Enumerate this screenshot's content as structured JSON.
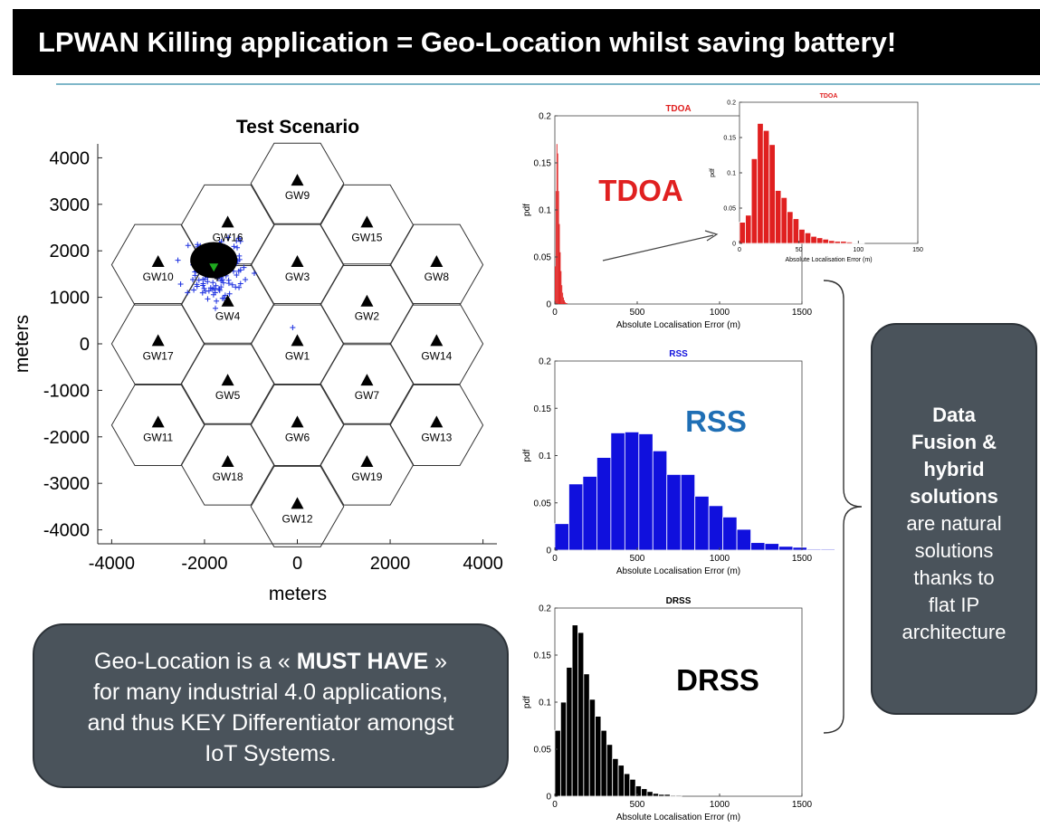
{
  "title": "LPWAN Killing application = Geo-Location whilst saving battery!",
  "callout_left": {
    "pre": "Geo-Location is a « ",
    "bold": "MUST HAVE",
    "post": " »",
    "line2": "for many industrial 4.0 applications,",
    "line3": "and thus KEY Differentiator amongst",
    "line4": "IoT Systems."
  },
  "callout_right": {
    "bold1": "Data",
    "bold2": "Fusion &",
    "bold3": "hybrid",
    "bold4": "solutions",
    "line5": "are natural",
    "line6": "solutions",
    "line7": "thanks to",
    "line8": "flat IP",
    "line9": "architecture"
  },
  "colors": {
    "tdoa": "#e02020",
    "rss": "#1010dd",
    "drss": "#000000",
    "rss_label": "#1f6fb5",
    "callout_bg": "#4a535b",
    "gw_cluster_green": "#1faa1f"
  },
  "chart_data": [
    {
      "type": "scatter",
      "title": "Test Scenario",
      "xlabel": "meters",
      "ylabel": "meters",
      "xlim": [
        -4300,
        4300
      ],
      "ylim": [
        -4300,
        4300
      ],
      "xticks": [
        -4000,
        -2000,
        0,
        2000,
        4000
      ],
      "yticks": [
        4000,
        3000,
        2000,
        1000,
        0,
        -1000,
        -2000,
        -3000,
        -4000
      ],
      "xtick_labels": [
        "-4000",
        "-2000",
        "0",
        "2000",
        "4000"
      ],
      "ytick_labels": [
        "4000",
        "3000",
        "2000",
        "1000",
        "0",
        "-1000",
        "-2000",
        "-3000",
        "-4000"
      ],
      "gateways": [
        {
          "name": "GW9",
          "x": 0,
          "y": 3500
        },
        {
          "name": "GW16",
          "x": -1500,
          "y": 2600
        },
        {
          "name": "GW15",
          "x": 1500,
          "y": 2600
        },
        {
          "name": "GW10",
          "x": -3000,
          "y": 1750
        },
        {
          "name": "GW3",
          "x": 0,
          "y": 1750
        },
        {
          "name": "GW8",
          "x": 3000,
          "y": 1750
        },
        {
          "name": "GW4",
          "x": -1500,
          "y": 900
        },
        {
          "name": "GW2",
          "x": 1500,
          "y": 900
        },
        {
          "name": "GW17",
          "x": -3000,
          "y": 50
        },
        {
          "name": "GW1",
          "x": 0,
          "y": 50
        },
        {
          "name": "GW14",
          "x": 3000,
          "y": 50
        },
        {
          "name": "GW5",
          "x": -1500,
          "y": -800
        },
        {
          "name": "GW7",
          "x": 1500,
          "y": -800
        },
        {
          "name": "GW11",
          "x": -3000,
          "y": -1700
        },
        {
          "name": "GW6",
          "x": 0,
          "y": -1700
        },
        {
          "name": "GW13",
          "x": 3000,
          "y": -1700
        },
        {
          "name": "GW18",
          "x": -1500,
          "y": -2550
        },
        {
          "name": "GW19",
          "x": 1500,
          "y": -2550
        },
        {
          "name": "GW12",
          "x": 0,
          "y": -3450
        }
      ],
      "estimates_center": {
        "x": -1800,
        "y": 1800
      }
    },
    {
      "type": "bar",
      "title": "TDOA",
      "label": "TDOA",
      "xlabel": "Absolute Localisation Error (m)",
      "ylabel": "pdf",
      "xlim": [
        0,
        1500
      ],
      "ylim": [
        0,
        0.2
      ],
      "xtick_labels": [
        "0",
        "500",
        "1000",
        "1500"
      ],
      "ytick_labels": [
        "0",
        "0.05",
        "0.1",
        "0.15",
        "0.2"
      ],
      "bin_width": 5,
      "values": [
        0.04,
        0.12,
        0.17,
        0.16,
        0.12,
        0.085,
        0.055,
        0.035,
        0.02,
        0.012,
        0.007,
        0.004,
        0.002,
        0.001,
        0.001
      ]
    },
    {
      "type": "bar",
      "title": "TDOA",
      "xlabel": "Absolute Localisation Error (m)",
      "ylabel": "pdf",
      "xlim": [
        0,
        150
      ],
      "ylim": [
        0,
        0.2
      ],
      "xtick_labels": [
        "0",
        "50",
        "100",
        "150"
      ],
      "ytick_labels": [
        "0",
        "0.05",
        "0.1",
        "0.15",
        "0.2"
      ],
      "bin_width": 5,
      "values": [
        0.03,
        0.04,
        0.12,
        0.17,
        0.16,
        0.14,
        0.075,
        0.065,
        0.045,
        0.035,
        0.02,
        0.015,
        0.01,
        0.008,
        0.006,
        0.004,
        0.003,
        0.003,
        0.002,
        0.001,
        0.001
      ]
    },
    {
      "type": "bar",
      "title": "RSS",
      "label": "RSS",
      "xlabel": "Absolute Localisation Error (m)",
      "ylabel": "pdf",
      "xlim": [
        0,
        1500
      ],
      "ylim": [
        0,
        0.2
      ],
      "xtick_labels": [
        "0",
        "500",
        "1000",
        "1500"
      ],
      "ytick_labels": [
        "0",
        "0.05",
        "0.1",
        "0.15",
        "0.2"
      ],
      "bin_width": 85,
      "values": [
        0.028,
        0.07,
        0.078,
        0.098,
        0.124,
        0.125,
        0.123,
        0.105,
        0.08,
        0.08,
        0.057,
        0.047,
        0.035,
        0.022,
        0.008,
        0.007,
        0.004,
        0.003,
        0.001,
        0.001
      ]
    },
    {
      "type": "bar",
      "title": "DRSS",
      "label": "DRSS",
      "xlabel": "Absolute Localisation Error (m)",
      "ylabel": "pdf",
      "xlim": [
        0,
        1500
      ],
      "ylim": [
        0,
        0.2
      ],
      "xtick_labels": [
        "0",
        "500",
        "1000",
        "1500"
      ],
      "ytick_labels": [
        "0",
        "0.05",
        "0.1",
        "0.15",
        "0.2"
      ],
      "bin_width": 35,
      "values": [
        0.07,
        0.1,
        0.137,
        0.182,
        0.174,
        0.13,
        0.103,
        0.085,
        0.07,
        0.055,
        0.04,
        0.033,
        0.024,
        0.018,
        0.011,
        0.008,
        0.005,
        0.003,
        0.002,
        0.002,
        0.001,
        0.001
      ]
    }
  ]
}
